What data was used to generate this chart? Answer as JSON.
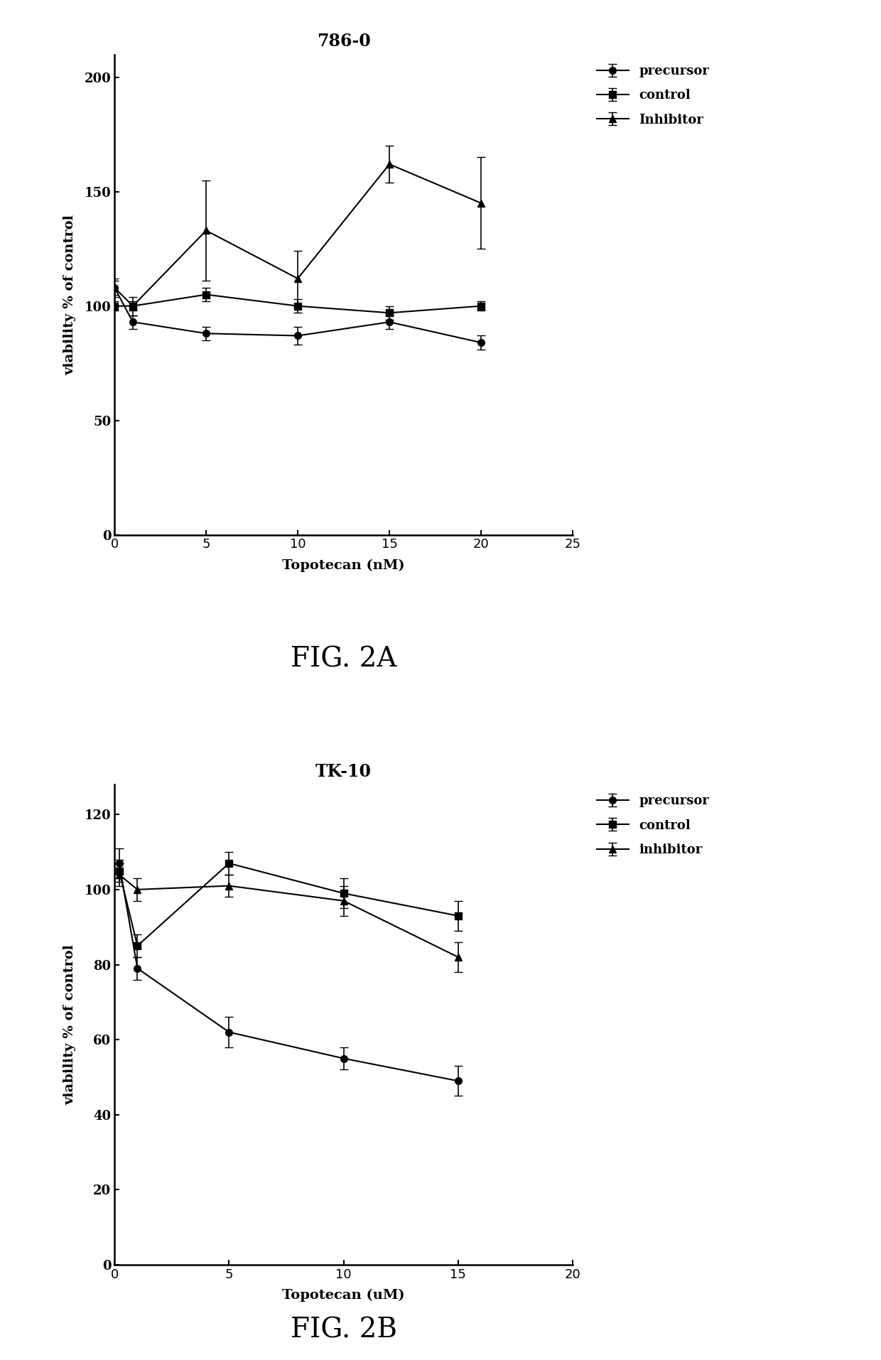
{
  "fig_a": {
    "title": "786-0",
    "xlabel": "Topotecan (nM)",
    "ylabel": "viability % of control",
    "xlim": [
      0,
      25
    ],
    "ylim": [
      0,
      210
    ],
    "xticks": [
      0,
      5,
      10,
      15,
      20,
      25
    ],
    "yticks": [
      0,
      50,
      100,
      150,
      200
    ],
    "x": [
      0,
      1,
      5,
      10,
      15,
      20
    ],
    "precursor_y": [
      108,
      93,
      88,
      87,
      93,
      84
    ],
    "precursor_yerr": [
      3,
      3,
      3,
      4,
      3,
      3
    ],
    "control_y": [
      100,
      100,
      105,
      100,
      97,
      100
    ],
    "control_yerr": [
      2,
      2,
      3,
      3,
      3,
      2
    ],
    "inhibitor_y": [
      108,
      100,
      133,
      112,
      162,
      145
    ],
    "inhibitor_yerr": [
      4,
      4,
      22,
      12,
      8,
      20
    ],
    "legend_labels": [
      "precursor",
      "control",
      "Inhibitor"
    ],
    "fig_label": "FIG. 2A"
  },
  "fig_b": {
    "title": "TK-10",
    "xlabel": "Topotecan (uM)",
    "ylabel": "viability % of control",
    "xlim": [
      0,
      20
    ],
    "ylim": [
      0,
      128
    ],
    "xticks": [
      0,
      5,
      10,
      15,
      20
    ],
    "yticks": [
      0,
      20,
      40,
      60,
      80,
      100,
      120
    ],
    "x": [
      0.2,
      1,
      5,
      10,
      15
    ],
    "precursor_y": [
      107,
      79,
      62,
      55,
      49
    ],
    "precursor_yerr": [
      4,
      3,
      4,
      3,
      4
    ],
    "control_y": [
      105,
      85,
      107,
      99,
      93
    ],
    "control_yerr": [
      3,
      3,
      3,
      4,
      4
    ],
    "inhibitor_y": [
      104,
      100,
      101,
      97,
      82
    ],
    "inhibitor_yerr": [
      3,
      3,
      3,
      4,
      4
    ],
    "legend_labels": [
      "precursor",
      "control",
      "inhibitor"
    ],
    "fig_label": "FIG. 2B"
  },
  "line_color": "#000000",
  "markersize": 7,
  "linewidth": 1.5,
  "capsize": 4,
  "elinewidth": 1.2,
  "font_family": "serif",
  "title_fontsize": 17,
  "label_fontsize": 14,
  "tick_fontsize": 13,
  "legend_fontsize": 13,
  "figlabel_fontsize": 28
}
